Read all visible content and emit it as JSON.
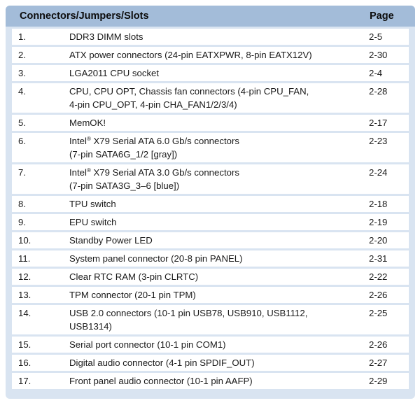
{
  "table": {
    "header": {
      "title": "Connectors/Jumpers/Slots",
      "page": "Page"
    },
    "rows": [
      {
        "num": "1.",
        "desc": [
          "DDR3 DIMM slots"
        ],
        "page": "2-5"
      },
      {
        "num": "2.",
        "desc": [
          "ATX power connectors (24-pin EATXPWR, 8-pin EATX12V)"
        ],
        "page": "2-30"
      },
      {
        "num": "3.",
        "desc": [
          "LGA2011 CPU socket"
        ],
        "page": "2-4"
      },
      {
        "num": "4.",
        "desc": [
          "CPU, CPU OPT, Chassis fan connectors (4-pin CPU_FAN,",
          "4-pin CPU_OPT, 4-pin CHA_FAN1/2/3/4)"
        ],
        "page": "2-28"
      },
      {
        "num": "5.",
        "desc": [
          "MemOK!"
        ],
        "page": "2-17"
      },
      {
        "num": "6.",
        "brand": "Intel",
        "reg": "®",
        "desc": [
          " X79 Serial ATA 6.0 Gb/s connectors",
          "(7-pin SATA6G_1/2 [gray])"
        ],
        "page": "2-23"
      },
      {
        "num": "7.",
        "brand": "Intel",
        "reg": "®",
        "desc": [
          " X79 Serial ATA 3.0 Gb/s connectors",
          "(7-pin SATA3G_3–6 [blue])"
        ],
        "page": "2-24"
      },
      {
        "num": "8.",
        "desc": [
          "TPU switch"
        ],
        "page": "2-18"
      },
      {
        "num": "9.",
        "desc": [
          "EPU switch"
        ],
        "page": "2-19"
      },
      {
        "num": "10.",
        "desc": [
          "Standby Power LED"
        ],
        "page": "2-20"
      },
      {
        "num": "11.",
        "desc": [
          "System panel connector (20-8 pin PANEL)"
        ],
        "page": "2-31"
      },
      {
        "num": "12.",
        "desc": [
          "Clear RTC RAM (3-pin CLRTC)"
        ],
        "page": "2-22"
      },
      {
        "num": "13.",
        "desc": [
          "TPM connector (20-1 pin TPM)"
        ],
        "page": "2-26"
      },
      {
        "num": "14.",
        "desc": [
          "USB 2.0 connectors (10-1 pin USB78, USB910, USB1112,",
          "USB1314)"
        ],
        "page": "2-25"
      },
      {
        "num": "15.",
        "desc": [
          "Serial port connector (10-1 pin COM1)"
        ],
        "page": "2-26"
      },
      {
        "num": "16.",
        "desc": [
          "Digital audio connector (4-1 pin SPDIF_OUT)"
        ],
        "page": "2-27"
      },
      {
        "num": "17.",
        "desc": [
          "Front panel audio connector (10-1 pin AAFP)"
        ],
        "page": "2-29"
      }
    ]
  }
}
